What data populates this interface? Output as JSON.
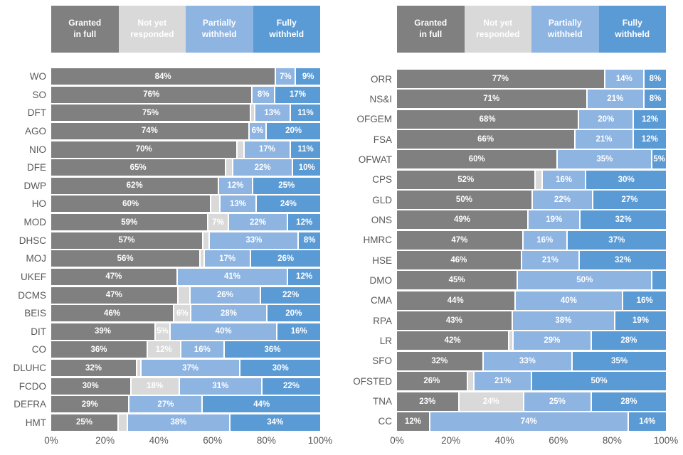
{
  "legend": {
    "items": [
      {
        "key": "granted-in-full",
        "label": "Granted\nin full",
        "color": "#808080"
      },
      {
        "key": "not-yet-responded",
        "label": "Not yet\nresponded",
        "color": "#d9d9d9"
      },
      {
        "key": "partially-withheld",
        "label": "Partially\nwithheld",
        "color": "#8eb4e2"
      },
      {
        "key": "fully-withheld",
        "label": "Fully\nwithheld",
        "color": "#5b9bd5"
      }
    ]
  },
  "axis": {
    "ticks": [
      "0%",
      "20%",
      "40%",
      "60%",
      "80%",
      "100%"
    ]
  },
  "chart_data": [
    {
      "type": "bar",
      "orientation": "horizontal",
      "stacked": true,
      "title": "",
      "xlabel": "",
      "ylabel": "",
      "xlim": [
        0,
        100
      ],
      "x_ticks": [
        "0%",
        "20%",
        "40%",
        "60%",
        "80%",
        "100%"
      ],
      "grid": false,
      "legend_position": "top",
      "series_names": [
        "Granted in full",
        "Not yet responded",
        "Partially withheld",
        "Fully withheld"
      ],
      "categories": [
        "WO",
        "SO",
        "DFT",
        "AGO",
        "NIO",
        "DFE",
        "DWP",
        "HO",
        "MOD",
        "DHSC",
        "MOJ",
        "UKEF",
        "DCMS",
        "BEIS",
        "DIT",
        "CO",
        "DLUHC",
        "FCDO",
        "DEFRA",
        "HMT"
      ],
      "rows": [
        {
          "label": "WO",
          "values": [
            84,
            0,
            7,
            9
          ],
          "value_labels": [
            "84%",
            "",
            "7%",
            "9%"
          ]
        },
        {
          "label": "SO",
          "values": [
            76,
            0,
            8,
            17
          ],
          "value_labels": [
            "76%",
            "",
            "8%",
            "17%"
          ]
        },
        {
          "label": "DFT",
          "values": [
            75,
            1,
            13,
            11
          ],
          "value_labels": [
            "75%",
            "",
            "13%",
            "11%"
          ]
        },
        {
          "label": "AGO",
          "values": [
            74,
            0,
            6,
            20
          ],
          "value_labels": [
            "74%",
            "",
            "6%",
            "20%"
          ]
        },
        {
          "label": "NIO",
          "values": [
            70,
            2,
            17,
            11
          ],
          "value_labels": [
            "70%",
            "",
            "17%",
            "11%"
          ]
        },
        {
          "label": "DFE",
          "values": [
            65,
            2,
            22,
            10
          ],
          "value_labels": [
            "65%",
            "",
            "22%",
            "10%"
          ]
        },
        {
          "label": "DWP",
          "values": [
            62,
            0,
            12,
            25
          ],
          "value_labels": [
            "62%",
            "",
            "12%",
            "25%"
          ]
        },
        {
          "label": "HO",
          "values": [
            60,
            3,
            13,
            24
          ],
          "value_labels": [
            "60%",
            "",
            "13%",
            "24%"
          ]
        },
        {
          "label": "MOD",
          "values": [
            59,
            7,
            22,
            12
          ],
          "value_labels": [
            "59%",
            "7%",
            "22%",
            "12%"
          ]
        },
        {
          "label": "DHSC",
          "values": [
            57,
            2,
            33,
            8
          ],
          "value_labels": [
            "57%",
            "",
            "33%",
            "8%"
          ]
        },
        {
          "label": "MOJ",
          "values": [
            56,
            1,
            17,
            26
          ],
          "value_labels": [
            "56%",
            "",
            "17%",
            "26%"
          ]
        },
        {
          "label": "UKEF",
          "values": [
            47,
            0,
            41,
            12
          ],
          "value_labels": [
            "47%",
            "",
            "41%",
            "12%"
          ]
        },
        {
          "label": "DCMS",
          "values": [
            47,
            4,
            26,
            22
          ],
          "value_labels": [
            "47%",
            "",
            "26%",
            "22%"
          ]
        },
        {
          "label": "BEIS",
          "values": [
            46,
            6,
            28,
            20
          ],
          "value_labels": [
            "46%",
            "6%",
            "28%",
            "20%"
          ]
        },
        {
          "label": "DIT",
          "values": [
            39,
            5,
            40,
            16
          ],
          "value_labels": [
            "39%",
            "5%",
            "40%",
            "16%"
          ]
        },
        {
          "label": "CO",
          "values": [
            36,
            12,
            16,
            36
          ],
          "value_labels": [
            "36%",
            "12%",
            "16%",
            "36%"
          ]
        },
        {
          "label": "DLUHC",
          "values": [
            32,
            1,
            37,
            30
          ],
          "value_labels": [
            "32%",
            "",
            "37%",
            "30%"
          ]
        },
        {
          "label": "FCDO",
          "values": [
            30,
            18,
            31,
            22
          ],
          "value_labels": [
            "30%",
            "18%",
            "31%",
            "22%"
          ]
        },
        {
          "label": "DEFRA",
          "values": [
            29,
            0,
            27,
            44
          ],
          "value_labels": [
            "29%",
            "",
            "27%",
            "44%"
          ]
        },
        {
          "label": "HMT",
          "values": [
            25,
            3,
            38,
            34
          ],
          "value_labels": [
            "25%",
            "",
            "38%",
            "34%"
          ]
        }
      ]
    },
    {
      "type": "bar",
      "orientation": "horizontal",
      "stacked": true,
      "title": "",
      "xlabel": "",
      "ylabel": "",
      "xlim": [
        0,
        100
      ],
      "x_ticks": [
        "0%",
        "20%",
        "40%",
        "60%",
        "80%",
        "100%"
      ],
      "grid": false,
      "legend_position": "top",
      "series_names": [
        "Granted in full",
        "Not yet responded",
        "Partially withheld",
        "Fully withheld"
      ],
      "categories": [
        "ORR",
        "NS&I",
        "OFGEM",
        "FSA",
        "OFWAT",
        "CPS",
        "GLD",
        "ONS",
        "HMRC",
        "HSE",
        "DMO",
        "CMA",
        "RPA",
        "LR",
        "SFO",
        "OFSTED",
        "TNA",
        "CC"
      ],
      "rows": [
        {
          "label": "ORR",
          "values": [
            77,
            0,
            14,
            8
          ],
          "value_labels": [
            "77%",
            "",
            "14%",
            "8%"
          ]
        },
        {
          "label": "NS&I",
          "values": [
            71,
            0,
            21,
            8
          ],
          "value_labels": [
            "71%",
            "",
            "21%",
            "8%"
          ]
        },
        {
          "label": "OFGEM",
          "values": [
            68,
            0,
            20,
            12
          ],
          "value_labels": [
            "68%",
            "",
            "20%",
            "12%"
          ]
        },
        {
          "label": "FSA",
          "values": [
            66,
            0,
            21,
            12
          ],
          "value_labels": [
            "66%",
            "",
            "21%",
            "12%"
          ]
        },
        {
          "label": "OFWAT",
          "values": [
            60,
            0,
            35,
            5
          ],
          "value_labels": [
            "60%",
            "",
            "35%",
            "5%"
          ]
        },
        {
          "label": "CPS",
          "values": [
            52,
            2,
            16,
            30
          ],
          "value_labels": [
            "52%",
            "",
            "16%",
            "30%"
          ]
        },
        {
          "label": "GLD",
          "values": [
            50,
            0,
            22,
            27
          ],
          "value_labels": [
            "50%",
            "",
            "22%",
            "27%"
          ]
        },
        {
          "label": "ONS",
          "values": [
            49,
            0,
            19,
            32
          ],
          "value_labels": [
            "49%",
            "",
            "19%",
            "32%"
          ]
        },
        {
          "label": "HMRC",
          "values": [
            47,
            0,
            16,
            37
          ],
          "value_labels": [
            "47%",
            "",
            "16%",
            "37%"
          ]
        },
        {
          "label": "HSE",
          "values": [
            46,
            0,
            21,
            32
          ],
          "value_labels": [
            "46%",
            "",
            "21%",
            "32%"
          ]
        },
        {
          "label": "DMO",
          "values": [
            45,
            0,
            50,
            5
          ],
          "value_labels": [
            "45%",
            "",
            "50%",
            ""
          ]
        },
        {
          "label": "CMA",
          "values": [
            44,
            0,
            40,
            16
          ],
          "value_labels": [
            "44%",
            "",
            "40%",
            "16%"
          ]
        },
        {
          "label": "RPA",
          "values": [
            43,
            0,
            38,
            19
          ],
          "value_labels": [
            "43%",
            "",
            "38%",
            "19%"
          ]
        },
        {
          "label": "LR",
          "values": [
            42,
            1,
            29,
            28
          ],
          "value_labels": [
            "42%",
            "",
            "29%",
            "28%"
          ]
        },
        {
          "label": "SFO",
          "values": [
            32,
            0,
            33,
            35
          ],
          "value_labels": [
            "32%",
            "",
            "33%",
            "35%"
          ]
        },
        {
          "label": "OFSTED",
          "values": [
            26,
            2,
            21,
            50
          ],
          "value_labels": [
            "26%",
            "",
            "21%",
            "50%"
          ]
        },
        {
          "label": "TNA",
          "values": [
            23,
            24,
            25,
            28
          ],
          "value_labels": [
            "23%",
            "24%",
            "25%",
            "28%"
          ]
        },
        {
          "label": "CC",
          "values": [
            12,
            0,
            74,
            14
          ],
          "value_labels": [
            "12%",
            "",
            "74%",
            "14%"
          ]
        }
      ]
    }
  ]
}
